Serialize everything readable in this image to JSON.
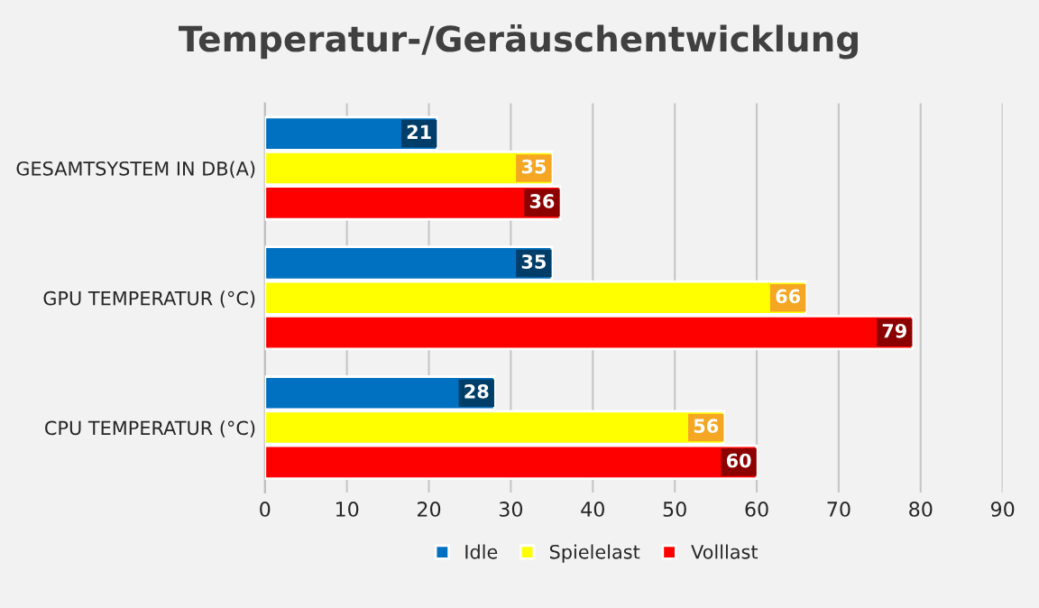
{
  "chart_data": {
    "type": "bar",
    "orientation": "horizontal",
    "title": "Temperatur-/Geräuschentwicklung",
    "categories": [
      "GESAMTSYSTEM IN DB(A)",
      "GPU TEMPERATUR (°C)",
      "CPU TEMPERATUR (°C)"
    ],
    "series": [
      {
        "name": "Idle",
        "color": "#0070c0",
        "values": [
          21,
          35,
          28
        ]
      },
      {
        "name": "Spielelast",
        "color": "#ffff00",
        "values": [
          35,
          66,
          56
        ]
      },
      {
        "name": "Volllast",
        "color": "#ff0000",
        "values": [
          36,
          79,
          60
        ]
      }
    ],
    "xlim": [
      0,
      90
    ],
    "xticks": [
      0,
      10,
      20,
      30,
      40,
      50,
      60,
      70,
      80,
      90
    ],
    "grid": "x",
    "legend": "bottom",
    "data_labels": true
  }
}
